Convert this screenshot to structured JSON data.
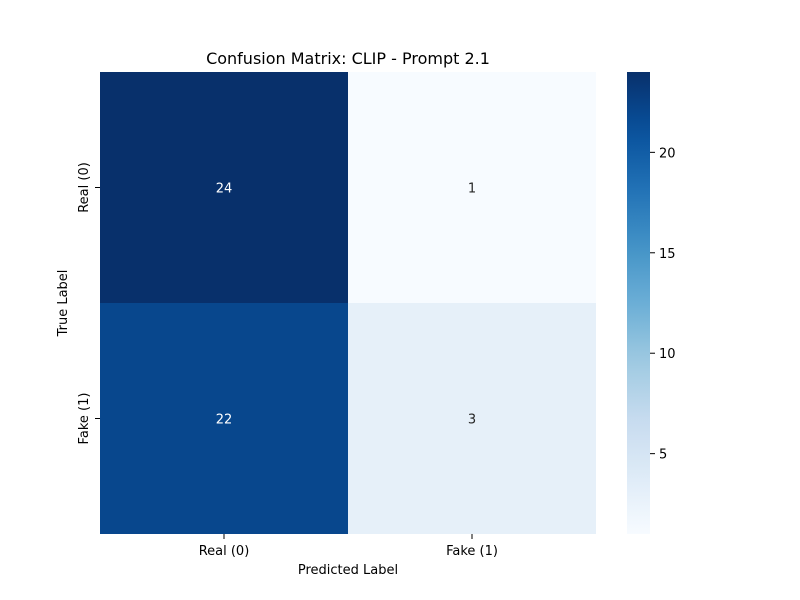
{
  "chart_data": {
    "type": "heatmap",
    "title": "Confusion Matrix: CLIP - Prompt 2.1",
    "xlabel": "Predicted Label",
    "ylabel": "True Label",
    "x_categories": [
      "Real (0)",
      "Fake (1)"
    ],
    "y_categories": [
      "Real (0)",
      "Fake (1)"
    ],
    "values": [
      [
        24,
        1
      ],
      [
        22,
        3
      ]
    ],
    "colormap": "Blues",
    "color_range": [
      1,
      24
    ],
    "colorbar_ticks": [
      5,
      10,
      15,
      20
    ],
    "grid": false,
    "colors": {
      "low": "#f7fbff",
      "high": "#08306b",
      "dark_text": "#262626",
      "light_text": "#ffffff"
    }
  }
}
